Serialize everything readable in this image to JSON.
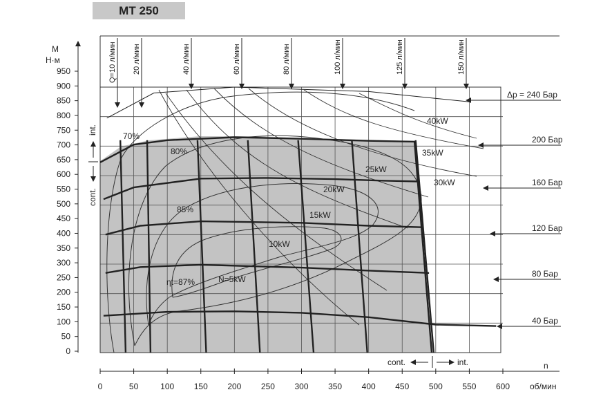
{
  "chart_data": {
    "type": "line",
    "title": "MT 250",
    "y_axis": {
      "label_top": "M",
      "label_unit": "Н·м",
      "ticks": [
        0,
        50,
        100,
        150,
        200,
        250,
        300,
        350,
        400,
        450,
        500,
        550,
        600,
        650,
        700,
        750,
        800,
        850,
        900,
        950
      ],
      "range": [
        0,
        950
      ],
      "region_int": "int.",
      "region_cont": "cont."
    },
    "x_axis": {
      "label_n": "n",
      "unit": "об/мин",
      "ticks": [
        0,
        50,
        100,
        150,
        200,
        250,
        300,
        350,
        400,
        450,
        500,
        550,
        600
      ],
      "range": [
        0,
        600
      ],
      "region_cont": "cont.",
      "region_int": "int."
    },
    "grid": true,
    "flow_labels": [
      "Q=10 л/мин",
      "20 л/мин",
      "40 л/мин",
      "60 л/мин",
      "80 л/мин",
      "100 л/мин",
      "125 л/мин",
      "150 л/мин"
    ],
    "pressure_labels": [
      "Δp = 240 Бар",
      "200 Бар",
      "160 Бар",
      "120 Бар",
      "80 Бар",
      "40 Бар"
    ],
    "power_labels": [
      "40kW",
      "35kW",
      "30kW",
      "25kW",
      "20kW",
      "15kW",
      "10kW",
      "N=5kW"
    ],
    "efficiency_labels": [
      "70%",
      "80%",
      "85%",
      "ηt=87%"
    ],
    "pressure_curves": [
      {
        "name": "240 Бар",
        "points": [
          [
            10,
            795
          ],
          [
            80,
            880
          ],
          [
            200,
            900
          ],
          [
            400,
            885
          ],
          [
            550,
            850
          ]
        ]
      },
      {
        "name": "200 Бар",
        "points": [
          [
            0,
            645
          ],
          [
            50,
            705
          ],
          [
            100,
            720
          ],
          [
            200,
            730
          ],
          [
            300,
            725
          ],
          [
            400,
            718
          ],
          [
            470,
            715
          ]
        ]
      },
      {
        "name": "160 Бар",
        "points": [
          [
            5,
            520
          ],
          [
            50,
            560
          ],
          [
            150,
            590
          ],
          [
            250,
            592
          ],
          [
            350,
            588
          ],
          [
            420,
            583
          ],
          [
            475,
            580
          ]
        ]
      },
      {
        "name": "120 Бар",
        "points": [
          [
            8,
            400
          ],
          [
            60,
            430
          ],
          [
            150,
            445
          ],
          [
            300,
            440
          ],
          [
            400,
            430
          ],
          [
            480,
            425
          ]
        ]
      },
      {
        "name": "80 Бар",
        "points": [
          [
            8,
            270
          ],
          [
            60,
            290
          ],
          [
            150,
            298
          ],
          [
            300,
            288
          ],
          [
            400,
            278
          ],
          [
            490,
            270
          ]
        ]
      },
      {
        "name": "40 Бар",
        "points": [
          [
            5,
            125
          ],
          [
            100,
            138
          ],
          [
            200,
            140
          ],
          [
            300,
            135
          ],
          [
            400,
            120
          ],
          [
            500,
            95
          ],
          [
            590,
            90
          ]
        ]
      }
    ],
    "flow_lines": [
      {
        "name": "Q=10 л/мин",
        "points": [
          [
            30,
            720
          ],
          [
            38,
            0
          ]
        ]
      },
      {
        "name": "20 л/мин",
        "points": [
          [
            70,
            720
          ],
          [
            75,
            0
          ]
        ]
      },
      {
        "name": "40 л/мин",
        "points": [
          [
            145,
            720
          ],
          [
            158,
            0
          ]
        ]
      },
      {
        "name": "60 л/мин",
        "points": [
          [
            220,
            720
          ],
          [
            238,
            0
          ]
        ]
      },
      {
        "name": "80 л/мин",
        "points": [
          [
            295,
            720
          ],
          [
            318,
            0
          ]
        ]
      },
      {
        "name": "100 л/мин",
        "points": [
          [
            375,
            720
          ],
          [
            398,
            0
          ]
        ]
      },
      {
        "name": "125 л/мин",
        "points": [
          [
            470,
            720
          ],
          [
            497,
            0
          ]
        ]
      }
    ]
  }
}
